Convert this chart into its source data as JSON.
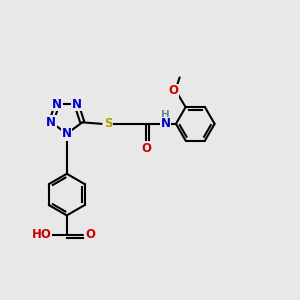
{
  "background_color": "#e8e8e8",
  "bond_color": "#000000",
  "bond_lw": 1.5,
  "font_size": 8.5,
  "colors": {
    "N": "#0000cc",
    "O": "#cc0000",
    "S": "#b8a000",
    "C": "#000000",
    "H": "#5a9090"
  }
}
